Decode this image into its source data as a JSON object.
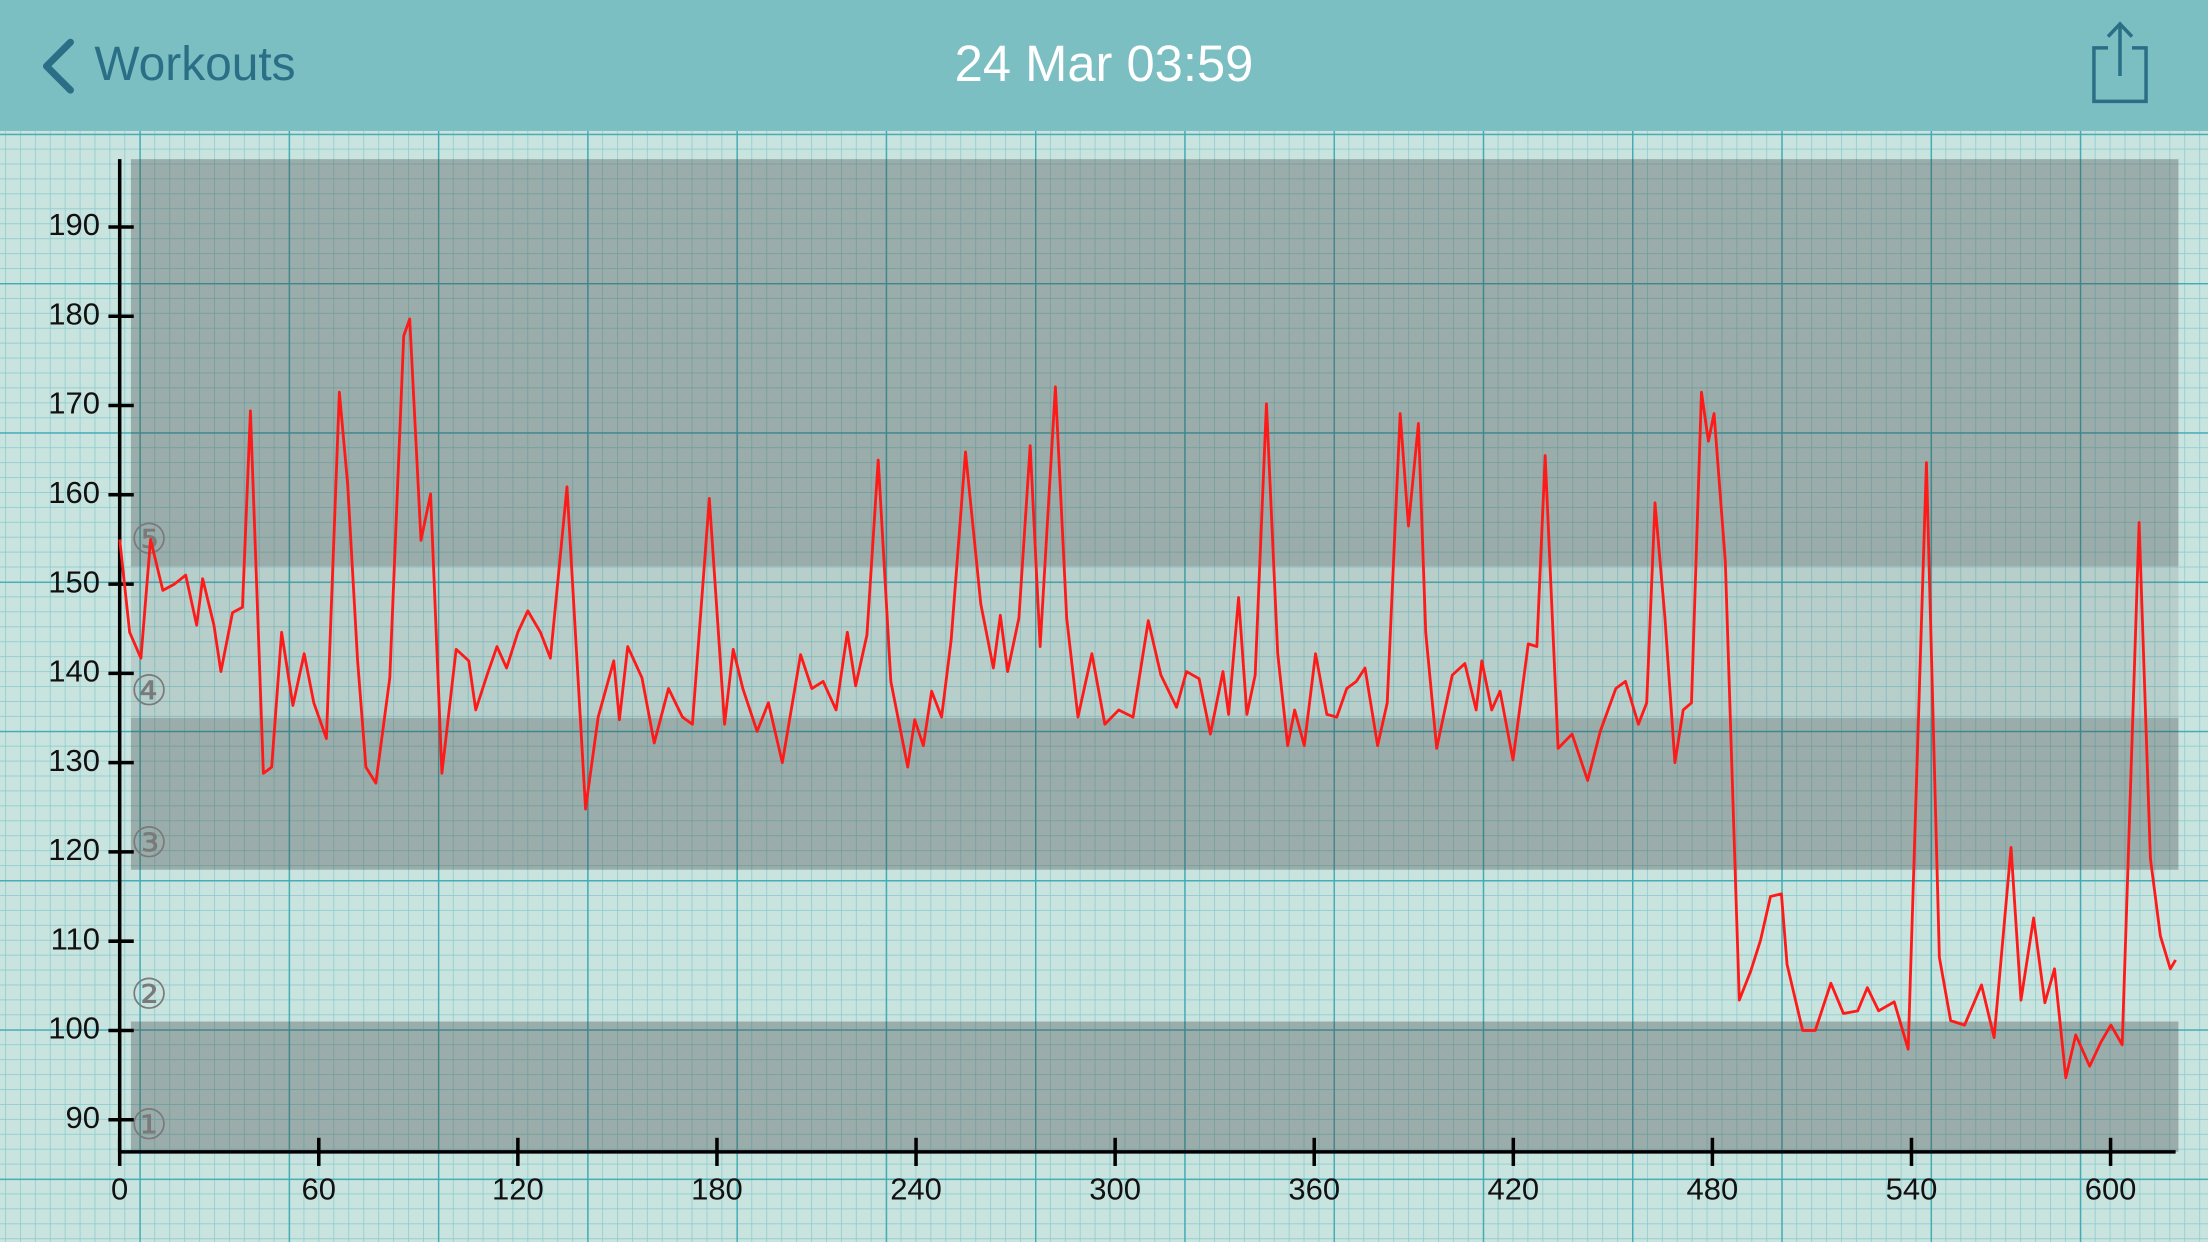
{
  "header": {
    "back_label": "Workouts",
    "title": "24 Mar 03:59"
  },
  "chart_data": {
    "type": "line",
    "color": "#ff1a1a",
    "xlim": [
      0,
      619.6
    ],
    "ylim": [
      86.4,
      197.6
    ],
    "xticks": [
      0,
      60,
      120,
      180,
      240,
      300,
      360,
      420,
      480,
      540,
      600
    ],
    "yticks": [
      90,
      100,
      110,
      120,
      130,
      140,
      150,
      160,
      170,
      180,
      190
    ],
    "zones": [
      {
        "label": "①",
        "range": [
          86.4,
          101
        ],
        "color": "rgba(60,60,60,0.32)"
      },
      {
        "label": "②",
        "range": [
          101,
          118
        ],
        "color": "rgba(60,60,60,0)"
      },
      {
        "label": "③",
        "range": [
          118,
          135
        ],
        "color": "rgba(60,60,60,0.32)"
      },
      {
        "label": "④",
        "range": [
          135,
          152
        ],
        "color": "rgba(60,60,60,0.12)"
      },
      {
        "label": "⑤",
        "range": [
          152,
          197.6
        ],
        "color": "rgba(60,60,60,0.32)"
      }
    ],
    "x": [
      0,
      3,
      6.4,
      9.3,
      13,
      16.5,
      19.9,
      23.2,
      25,
      28.4,
      30.5,
      34,
      37,
      39.4,
      43.3,
      45.8,
      48.8,
      52.2,
      55.6,
      58.5,
      62.3,
      66.2,
      68.7,
      71.7,
      74.2,
      77.2,
      81.4,
      85.6,
      87.4,
      90.8,
      93.7,
      97.1,
      101.4,
      105.2,
      107.3,
      110.7,
      113.7,
      116.6,
      120,
      123,
      126.8,
      129.8,
      134.8,
      140.4,
      144.2,
      148.9,
      150.6,
      153.1,
      157.4,
      161.1,
      165.4,
      169.6,
      172.6,
      177.7,
      182.3,
      184.9,
      187.8,
      192.1,
      195.5,
      199.7,
      205.2,
      208.6,
      212,
      215.9,
      219.3,
      221.8,
      225.2,
      228.6,
      232.4,
      237.5,
      239.6,
      242.2,
      244.7,
      247.7,
      250.6,
      254.9,
      259.5,
      263.3,
      265.4,
      267.6,
      271,
      274.4,
      277.4,
      282,
      285.4,
      288.8,
      293,
      296.9,
      301.1,
      305.4,
      310,
      313.8,
      318.5,
      321.5,
      325.3,
      328.7,
      332.5,
      334.2,
      337.2,
      339.7,
      342.2,
      345.6,
      349,
      352,
      354.1,
      357,
      360.4,
      363.8,
      366.8,
      369.8,
      372.7,
      375.3,
      379.1,
      382,
      385.9,
      388.4,
      391.4,
      393.6,
      396.9,
      401.6,
      405.4,
      408.8,
      410.5,
      413.5,
      416,
      419.9,
      424.5,
      427.1,
      429.6,
      433.5,
      437.7,
      442.4,
      446.2,
      450.9,
      453.8,
      457.7,
      460.2,
      462.7,
      465.7,
      468.7,
      471.2,
      473.7,
      476.7,
      478.8,
      480.5,
      483.9,
      488.1,
      491.5,
      494.5,
      497.5,
      500.8,
      502.5,
      507.2,
      511,
      515.7,
      519.5,
      523.8,
      526.7,
      530.1,
      534.8,
      539,
      544.5,
      548.4,
      551.8,
      556,
      561.1,
      564.9,
      570,
      573,
      576.8,
      580.2,
      583.1,
      586.5,
      589.5,
      593.7,
      597.1,
      600.1,
      603.5,
      608.6,
      612,
      615,
      618,
      619.6
    ],
    "values": [
      155,
      144.6,
      141.7,
      155,
      149.3,
      150,
      151,
      145.4,
      150.6,
      145.4,
      140.2,
      146.8,
      147.4,
      169.4,
      128.8,
      129.5,
      144.6,
      136.4,
      142.2,
      136.7,
      132.7,
      171.5,
      161.2,
      141.4,
      129.5,
      127.7,
      139.5,
      177.8,
      179.7,
      154.9,
      160.1,
      128.8,
      142.7,
      141.4,
      135.9,
      139.8,
      143,
      140.6,
      144.6,
      147,
      144.6,
      141.7,
      160.9,
      124.8,
      135.1,
      141.4,
      134.8,
      143,
      139.5,
      132.2,
      138.3,
      135.1,
      134.3,
      159.6,
      134.3,
      142.7,
      138.3,
      133.5,
      136.7,
      130,
      142.1,
      138.3,
      139.1,
      135.9,
      144.6,
      138.6,
      144.3,
      163.9,
      139.1,
      129.5,
      134.8,
      131.9,
      138,
      135.1,
      143.8,
      164.8,
      147.8,
      140.6,
      146.5,
      140.2,
      146.2,
      165.5,
      143,
      172.1,
      146.2,
      135.1,
      142.2,
      134.3,
      135.9,
      135.1,
      145.9,
      139.8,
      136.2,
      140.2,
      139.4,
      133.2,
      140.2,
      135.4,
      148.5,
      135.4,
      139.8,
      170.2,
      142.2,
      131.9,
      135.9,
      131.9,
      142.2,
      135.4,
      135.1,
      138.3,
      139.1,
      140.6,
      131.9,
      136.7,
      169.1,
      156.5,
      168,
      144.6,
      131.6,
      139.8,
      141.1,
      135.9,
      141.4,
      135.9,
      138,
      130.3,
      143.3,
      143,
      164.4,
      131.6,
      133.2,
      128,
      133.5,
      138.3,
      139.1,
      134.3,
      136.7,
      159.1,
      146.2,
      130,
      135.9,
      136.7,
      171.5,
      166,
      169.1,
      152.5,
      103.4,
      106.6,
      110.1,
      115,
      115.3,
      107.4,
      100,
      100,
      105.3,
      101.9,
      102.2,
      104.8,
      102.2,
      103.2,
      97.9,
      163.6,
      108.2,
      101.1,
      100.6,
      105.1,
      99.2,
      120.5,
      103.4,
      112.6,
      103.1,
      106.9,
      94.7,
      99.5,
      96,
      98.7,
      100.6,
      98.4,
      156.9,
      119.3,
      110.6,
      106.9,
      107.9
    ]
  }
}
